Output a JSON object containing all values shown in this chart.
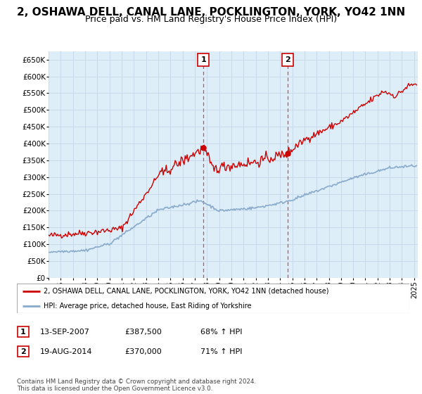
{
  "title": "2, OSHAWA DELL, CANAL LANE, POCKLINGTON, YORK, YO42 1NN",
  "subtitle": "Price paid vs. HM Land Registry's House Price Index (HPI)",
  "ylabel_ticks": [
    "£0",
    "£50K",
    "£100K",
    "£150K",
    "£200K",
    "£250K",
    "£300K",
    "£350K",
    "£400K",
    "£450K",
    "£500K",
    "£550K",
    "£600K",
    "£650K"
  ],
  "ytick_values": [
    0,
    50000,
    100000,
    150000,
    200000,
    250000,
    300000,
    350000,
    400000,
    450000,
    500000,
    550000,
    600000,
    650000
  ],
  "ylim": [
    0,
    675000
  ],
  "sale1_date_x": 2007.71,
  "sale1_price": 387500,
  "sale2_date_x": 2014.63,
  "sale2_price": 370000,
  "red_line_color": "#cc0000",
  "blue_line_color": "#88aacc",
  "vline_color": "#dd4444",
  "grid_color": "#c8daea",
  "plot_bg": "#ddeef8",
  "legend_label_red": "2, OSHAWA DELL, CANAL LANE, POCKLINGTON, YORK, YO42 1NN (detached house)",
  "legend_label_blue": "HPI: Average price, detached house, East Riding of Yorkshire",
  "table_rows": [
    [
      "1",
      "13-SEP-2007",
      "£387,500",
      "68% ↑ HPI"
    ],
    [
      "2",
      "19-AUG-2014",
      "£370,000",
      "71% ↑ HPI"
    ]
  ],
  "footer": "Contains HM Land Registry data © Crown copyright and database right 2024.\nThis data is licensed under the Open Government Licence v3.0.",
  "xmin": 1995.0,
  "xmax": 2025.3,
  "title_fontsize": 11,
  "subtitle_fontsize": 9
}
